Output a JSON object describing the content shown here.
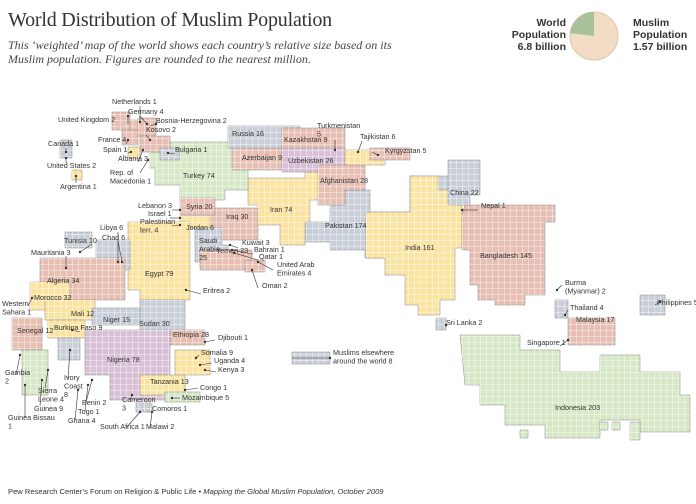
{
  "title": "World Distribution of Muslim Population",
  "subtitle_line1": "This ‘weighted’ map of the world shows each country’s relative size based on its",
  "subtitle_line2": "Muslim population. Figures are rounded to the nearest million.",
  "legend": {
    "world_label_1": "World",
    "world_label_2": "Population",
    "world_value": "6.8 billion",
    "muslim_label_1": "Muslim",
    "muslim_label_2": "Population",
    "muslim_value": "1.57 billion",
    "muslim_share": 0.231
  },
  "colors": {
    "yellow": "#fbe3a1",
    "pink": "#e8bfb3",
    "green": "#d7e8c7",
    "grey": "#c9cfd8",
    "purple": "#d8c1d6",
    "tan": "#f3dcc6",
    "pie_world": "#f3dcc6",
    "pie_muslim": "#a9c29a"
  },
  "countries": [
    {
      "label": "Indonesia 203",
      "color": "green"
    },
    {
      "label": "Pakistan 174",
      "color": "grey"
    },
    {
      "label": "India 161",
      "color": "yellow"
    },
    {
      "label": "Bangladesh 145",
      "color": "pink"
    },
    {
      "label": "Egypt 79",
      "color": "yellow"
    },
    {
      "label": "Nigeria 78",
      "color": "purple"
    },
    {
      "label": "Iran 74",
      "color": "yellow"
    },
    {
      "label": "Turkey 74",
      "color": "green"
    },
    {
      "label": "Algeria 34",
      "color": "pink"
    },
    {
      "label": "Morocco 32",
      "color": "yellow"
    },
    {
      "label": "Iraq 30",
      "color": "pink"
    },
    {
      "label": "Sudan 30",
      "color": "grey"
    },
    {
      "label": "Afghanistan 28",
      "color": "pink"
    },
    {
      "label": "Ethiopia 28",
      "color": "pink"
    },
    {
      "label": "Uzbekistan 26",
      "color": "purple"
    },
    {
      "label": "Saudi Arabia 25",
      "color": "grey"
    },
    {
      "label": "Yemen 23",
      "color": "pink"
    },
    {
      "label": "China 22",
      "color": "grey"
    },
    {
      "label": "Syria 20",
      "color": "pink"
    },
    {
      "label": "Malaysia 17",
      "color": "pink"
    },
    {
      "label": "Russia 16",
      "color": "grey"
    },
    {
      "label": "Niger 15",
      "color": "grey"
    },
    {
      "label": "Tanzania 13",
      "color": "yellow"
    },
    {
      "label": "Senegal 12",
      "color": "pink"
    },
    {
      "label": "Mali 12",
      "color": "yellow"
    },
    {
      "label": "Tunisia 10",
      "color": "grey"
    },
    {
      "label": "Somalia 9",
      "color": "yellow"
    },
    {
      "label": "Azerbaijan 9",
      "color": "pink"
    },
    {
      "label": "Kazakhstan 9",
      "color": "pink"
    },
    {
      "label": "Burkina Faso 9",
      "color": "yellow"
    },
    {
      "label": "Guinea 9",
      "color": "green"
    },
    {
      "label": "Muslims elsewhere around the world 8",
      "color": "grey"
    },
    {
      "label": "Ivory Coast 8",
      "color": "grey"
    },
    {
      "label": "Jordan 6",
      "color": "yellow"
    },
    {
      "label": "Libya 6",
      "color": "grey"
    },
    {
      "label": "Chad 6",
      "color": "pink"
    },
    {
      "label": "Tajikistan 6",
      "color": "yellow"
    },
    {
      "label": "Kyrgyzstan 5",
      "color": "pink"
    },
    {
      "label": "Turkmenistan 5",
      "color": "green"
    },
    {
      "label": "Philippines 5",
      "color": "grey"
    },
    {
      "label": "Mozambique 5",
      "color": "green"
    },
    {
      "label": "United Kingdom 2",
      "color": "pink"
    },
    {
      "label": "Germany 4",
      "color": "pink"
    },
    {
      "label": "France 4",
      "color": "pink"
    },
    {
      "label": "Thailand 4",
      "color": "grey"
    },
    {
      "label": "Uganda 4",
      "color": "grey"
    },
    {
      "label": "Kenya 3",
      "color": "pink"
    }
  ],
  "callouts": [
    "Netherlands 1",
    "Germany 4",
    "United Kingdom 2",
    "Bosnia-Herzegovina 2",
    "Kosovo 2",
    "France 4",
    "Spain 1",
    "Albania 3",
    "Bulgaria 1",
    "Rep. of Macedonia 1",
    "Canada 1",
    "United States 2",
    "Argentina 1",
    "Russia 16",
    "Kazakhstan 9",
    "Turkmenistan 5",
    "Tajikistan 6",
    "Kyrgyzstan 5",
    "Azerbaijan 9",
    "Uzbekistan 26",
    "Afghanistan 28",
    "Turkey 74",
    "Iran 74",
    "Lebanon 3",
    "Israel 1",
    "Palestinian terr. 4",
    "Syria 20",
    "Iraq 30",
    "Jordan 6",
    "Saudi Arabia 25",
    "Kuwait 3",
    "Bahrain 1",
    "Qatar 1",
    "United Arab Emirates 4",
    "Yemen 23",
    "Oman 2",
    "Pakistan 174",
    "India 161",
    "China 22",
    "Nepal 1",
    "Bangladesh 145",
    "Burma (Myanmar) 2",
    "Thailand 4",
    "Malaysia 17",
    "Singapore 1",
    "Sri Lanka 2",
    "Philippines 5",
    "Indonesia 203",
    "Libya 6",
    "Chad 6",
    "Tunisia 10",
    "Mauritania 3",
    "Algeria 34",
    "Egypt 79",
    "Western Sahara 1",
    "Morocco 32",
    "Mali 12",
    "Niger 15",
    "Sudan 30",
    "Eritrea 2",
    "Djibouti 1",
    "Ethiopia 28",
    "Somalia 9",
    "Uganda 4",
    "Kenya 3",
    "Burkina Faso 9",
    "Senegal 12",
    "Gambia 2",
    "Sierra Leone 4",
    "Guinea 9",
    "Guinea Bissau 1",
    "Ivory Coast 8",
    "Benin 2",
    "Togo 1",
    "Ghana 4",
    "Nigeria 78",
    "Cameroon 3",
    "Tanzania 13",
    "Congo 1",
    "Mozambique 5",
    "Comoros 1",
    "South Africa 1",
    "Malawi 2",
    "Muslims elsewhere around the world 8"
  ],
  "footer_plain": "Pew Research Center’s Forum on Religion & Public Life • ",
  "footer_italic": "Mapping the Global Muslim Population, October 2009"
}
